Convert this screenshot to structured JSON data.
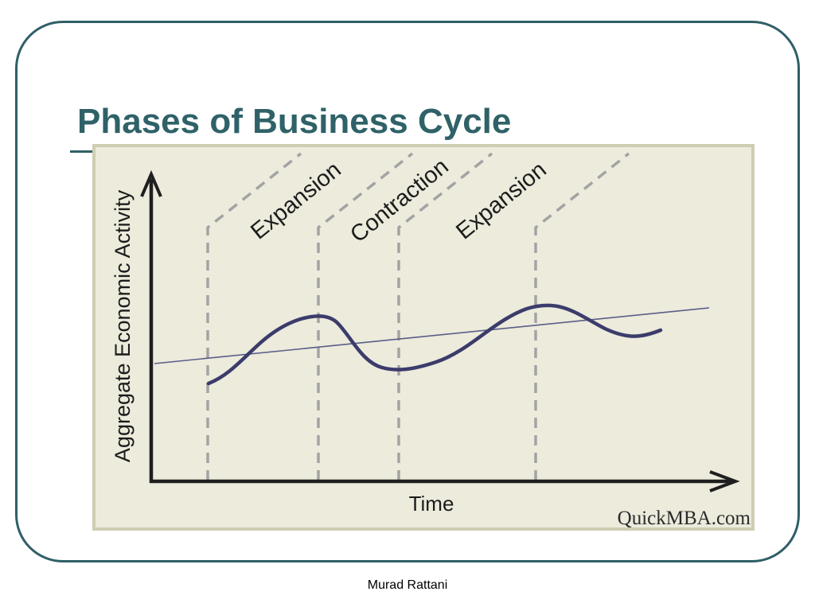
{
  "slide": {
    "title": "Phases of Business Cycle",
    "footer": "Murad Rattani",
    "accent_color": "#2f6268",
    "frame_color": "#2f5f66"
  },
  "diagram": {
    "background_color": "#ecebdc",
    "border_color": "#cfcdb1",
    "y_axis_label": "Aggregate Economic Activity",
    "x_axis_label": "Time",
    "phase_labels": [
      "Expansion",
      "Contraction",
      "Expansion"
    ],
    "watermark": "QuickMBA.com"
  }
}
